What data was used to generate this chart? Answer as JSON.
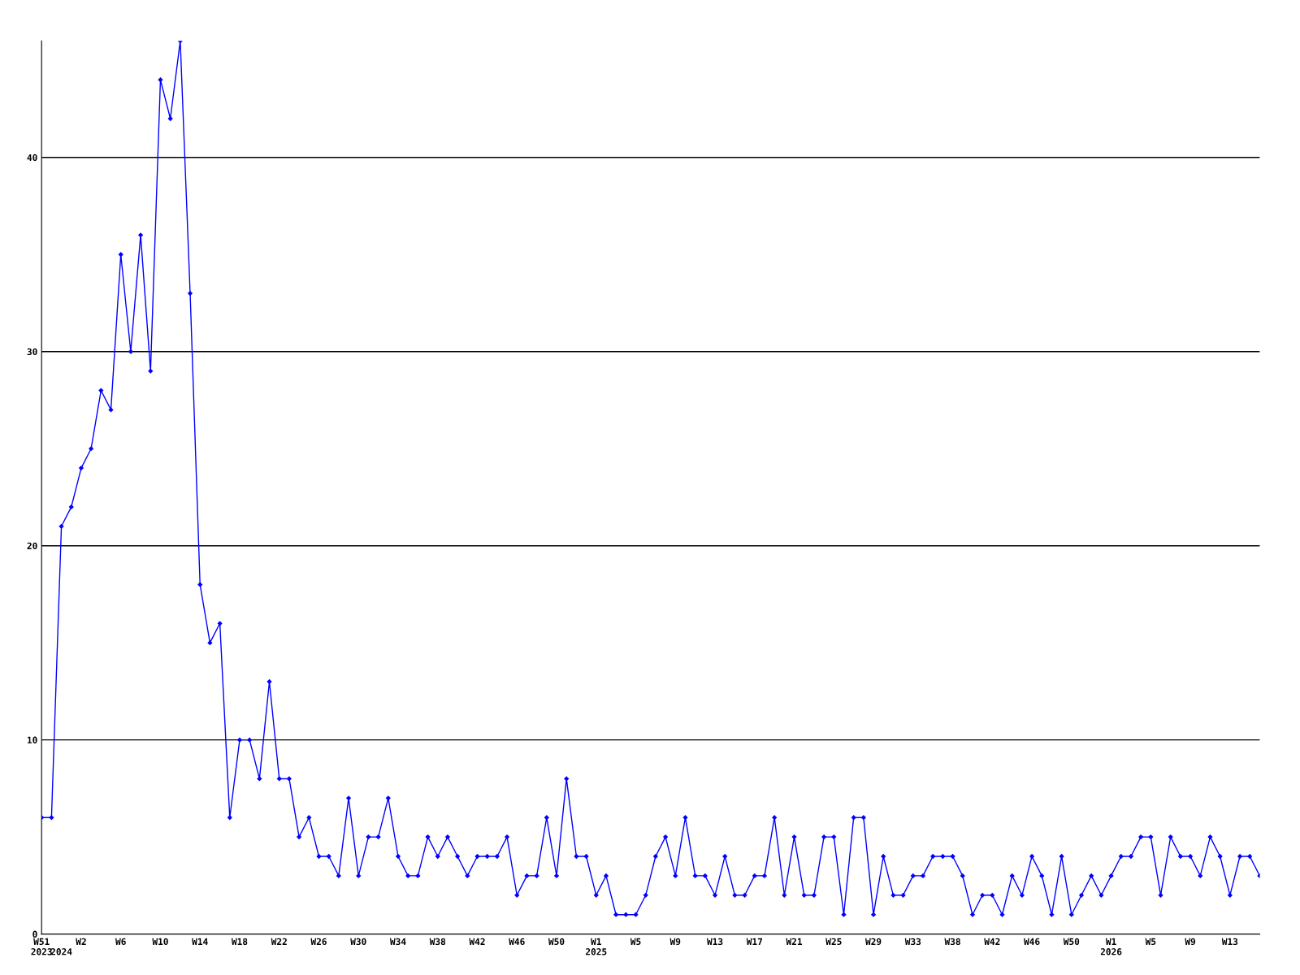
{
  "chart_data": {
    "type": "line",
    "categories": [
      "W51\n2023",
      null,
      "\n2024",
      null,
      "W2",
      null,
      null,
      null,
      "W6",
      null,
      null,
      null,
      "W10",
      null,
      null,
      null,
      "W14",
      null,
      null,
      null,
      "W18",
      null,
      null,
      null,
      "W22",
      null,
      null,
      null,
      "W26",
      null,
      null,
      null,
      "W30",
      null,
      null,
      null,
      "W34",
      null,
      null,
      null,
      "W38",
      null,
      null,
      null,
      "W42",
      null,
      null,
      null,
      "W46",
      null,
      null,
      null,
      "W50",
      null,
      null,
      null,
      "W1\n2025",
      null,
      null,
      null,
      "W5",
      null,
      null,
      null,
      "W9",
      null,
      null,
      null,
      "W13",
      null,
      null,
      null,
      "W17",
      null,
      null,
      null,
      "W21",
      null,
      null,
      null,
      "W25",
      null,
      null,
      null,
      "W29",
      null,
      null,
      null,
      "W33",
      null,
      null,
      null,
      "W38",
      null,
      null,
      null,
      "W42",
      null,
      null,
      null,
      "W46",
      null,
      null,
      null,
      "W50",
      null,
      null,
      null,
      "W1\n2026",
      null,
      null,
      null,
      "W5",
      null,
      null,
      null,
      "W9",
      null,
      null,
      null,
      "W13",
      null,
      null,
      null
    ],
    "series": [
      {
        "color": "#0000ff",
        "values": [
          6,
          6,
          21,
          22,
          24,
          25,
          28,
          27,
          35,
          30,
          36,
          29,
          44,
          42,
          46,
          33,
          18,
          15,
          16,
          6,
          10,
          10,
          8,
          13,
          8,
          8,
          5,
          6,
          4,
          4,
          3,
          7,
          3,
          5,
          5,
          7,
          4,
          3,
          3,
          5,
          4,
          5,
          4,
          3,
          4,
          4,
          4,
          5,
          2,
          3,
          3,
          6,
          3,
          8,
          4,
          4,
          2,
          3,
          1,
          1,
          1,
          2,
          4,
          5,
          3,
          6,
          3,
          3,
          2,
          4,
          2,
          2,
          3,
          3,
          6,
          2,
          5,
          2,
          2,
          5,
          5,
          1,
          6,
          6,
          1,
          4,
          2,
          2,
          3,
          3,
          4,
          4,
          4,
          3,
          1,
          2,
          2,
          1,
          3,
          2,
          4,
          3,
          1,
          4,
          1,
          2,
          3,
          2,
          3,
          4,
          4,
          5,
          5,
          2,
          5,
          4,
          4,
          3,
          5,
          4,
          2,
          4,
          4,
          3
        ]
      }
    ],
    "ylim": [
      0,
      46
    ],
    "yticks": [
      0,
      10,
      20,
      30,
      40
    ],
    "grid": "y",
    "marker": "diamond",
    "line_style": "solid"
  }
}
